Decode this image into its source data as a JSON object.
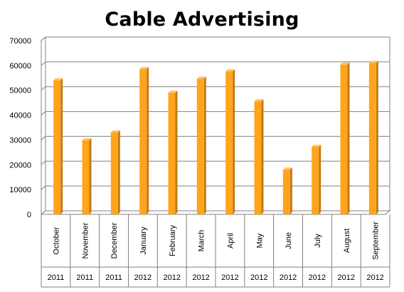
{
  "chart_data": {
    "type": "bar",
    "title": "Cable Advertising",
    "categories": [
      "October",
      "November",
      "December",
      "January",
      "February",
      "March",
      "April",
      "May",
      "June",
      "July",
      "August",
      "September"
    ],
    "years": [
      "2011",
      "2011",
      "2011",
      "2012",
      "2012",
      "2012",
      "2012",
      "2012",
      "2012",
      "2012",
      "2012",
      "2012"
    ],
    "values": [
      54000,
      29800,
      33000,
      58500,
      49000,
      54600,
      57600,
      45500,
      18000,
      27200,
      60300,
      61000
    ],
    "yticks": [
      "0",
      "10000",
      "20000",
      "30000",
      "40000",
      "50000",
      "60000",
      "70000"
    ],
    "ylim": [
      0,
      70000
    ],
    "xlabel": "",
    "ylabel": "",
    "grid": true,
    "legend": "none",
    "colors": {
      "bar_front": "#FFA41C",
      "bar_side": "#C27A10",
      "bar_top": "#FFC45A",
      "grid": "#808080",
      "wall": "#FFFFFF"
    }
  }
}
